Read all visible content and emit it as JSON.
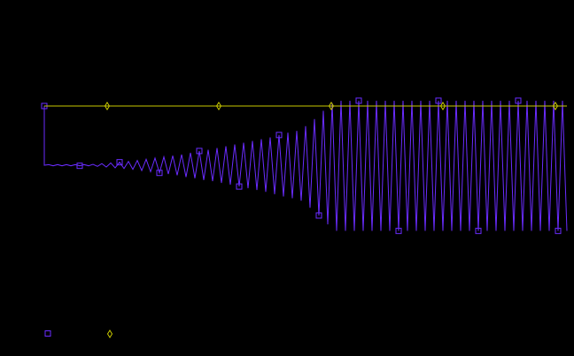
{
  "chart_data": {
    "type": "line",
    "xlim": [
      0,
      118
    ],
    "ylim": [
      -2.5,
      2.5
    ],
    "grid": false,
    "background": "#000000",
    "series": [
      {
        "color": "#6a2cff",
        "marker": "square",
        "markevery": 9,
        "x": [
          0,
          0,
          1,
          2,
          3,
          4,
          5,
          6,
          7,
          8,
          9,
          10,
          11,
          12,
          13,
          14,
          15,
          16,
          17,
          18,
          19,
          20,
          21,
          22,
          23,
          24,
          25,
          26,
          27,
          28,
          29,
          30,
          31,
          32,
          33,
          34,
          35,
          36,
          37,
          38,
          39,
          40,
          41,
          42,
          43,
          44,
          45,
          46,
          47,
          48,
          49,
          50,
          51,
          52,
          53,
          54,
          55,
          56,
          57,
          58,
          59,
          60,
          61,
          62,
          63,
          64,
          65,
          66,
          67,
          68,
          69,
          70,
          71,
          72,
          73,
          74,
          75,
          76,
          77,
          78,
          79,
          80,
          81,
          82,
          83,
          84,
          85,
          86,
          87,
          88,
          89,
          90,
          91,
          92,
          93,
          94,
          95,
          96,
          97,
          98,
          99,
          100,
          101,
          102,
          103,
          104,
          105,
          106,
          107,
          108,
          109,
          110,
          111,
          112,
          113,
          114,
          115,
          116,
          117,
          118
        ],
        "values": [
          1,
          0,
          0.01,
          -0.01,
          0.01,
          -0.01,
          0.01,
          -0.01,
          0.01,
          -0.01,
          0.01,
          -0.01,
          0.015,
          -0.02,
          0.026,
          -0.032,
          0.038,
          -0.045,
          0.05,
          -0.056,
          0.063,
          -0.07,
          0.08,
          -0.09,
          0.1,
          -0.11,
          0.12,
          -0.13,
          0.14,
          -0.15,
          0.16,
          -0.17,
          0.18,
          -0.2,
          0.21,
          -0.22,
          0.24,
          -0.25,
          0.26,
          -0.27,
          0.29,
          -0.3,
          0.32,
          -0.33,
          0.35,
          -0.36,
          0.38,
          -0.39,
          0.41,
          -0.42,
          0.44,
          -0.45,
          0.47,
          -0.49,
          0.51,
          -0.53,
          0.55,
          -0.56,
          0.58,
          -0.6,
          0.66,
          -0.72,
          0.78,
          -0.85,
          0.92,
          -1.0,
          1.05,
          -1.11,
          1.09,
          -1.11,
          1.09,
          -1.11,
          1.09,
          -1.11,
          1.09,
          -1.11,
          1.09,
          -1.11,
          1.09,
          -1.11,
          1.09,
          -1.11,
          1.09,
          -1.11,
          1.09,
          -1.11,
          1.09,
          -1.11,
          1.09,
          -1.11,
          1.09,
          -1.11,
          1.09,
          -1.11,
          1.09,
          -1.11,
          1.09,
          -1.11,
          1.09,
          -1.11,
          1.09,
          -1.11,
          1.09,
          -1.11,
          1.09,
          -1.11,
          1.09,
          -1.11,
          1.09,
          -1.11,
          1.09,
          -1.11,
          1.09,
          -1.11,
          1.09,
          -1.11,
          1.09,
          -1.11,
          1.09,
          -1.11
        ]
      },
      {
        "color": "#c8c800",
        "marker": "diamond",
        "markevery": [
          1,
          2,
          3,
          4,
          5
        ],
        "x": [
          0,
          14.2,
          39.4,
          64.8,
          90,
          115.4,
          118
        ],
        "values": [
          1,
          1,
          1,
          1,
          1,
          1,
          1
        ]
      }
    ]
  }
}
